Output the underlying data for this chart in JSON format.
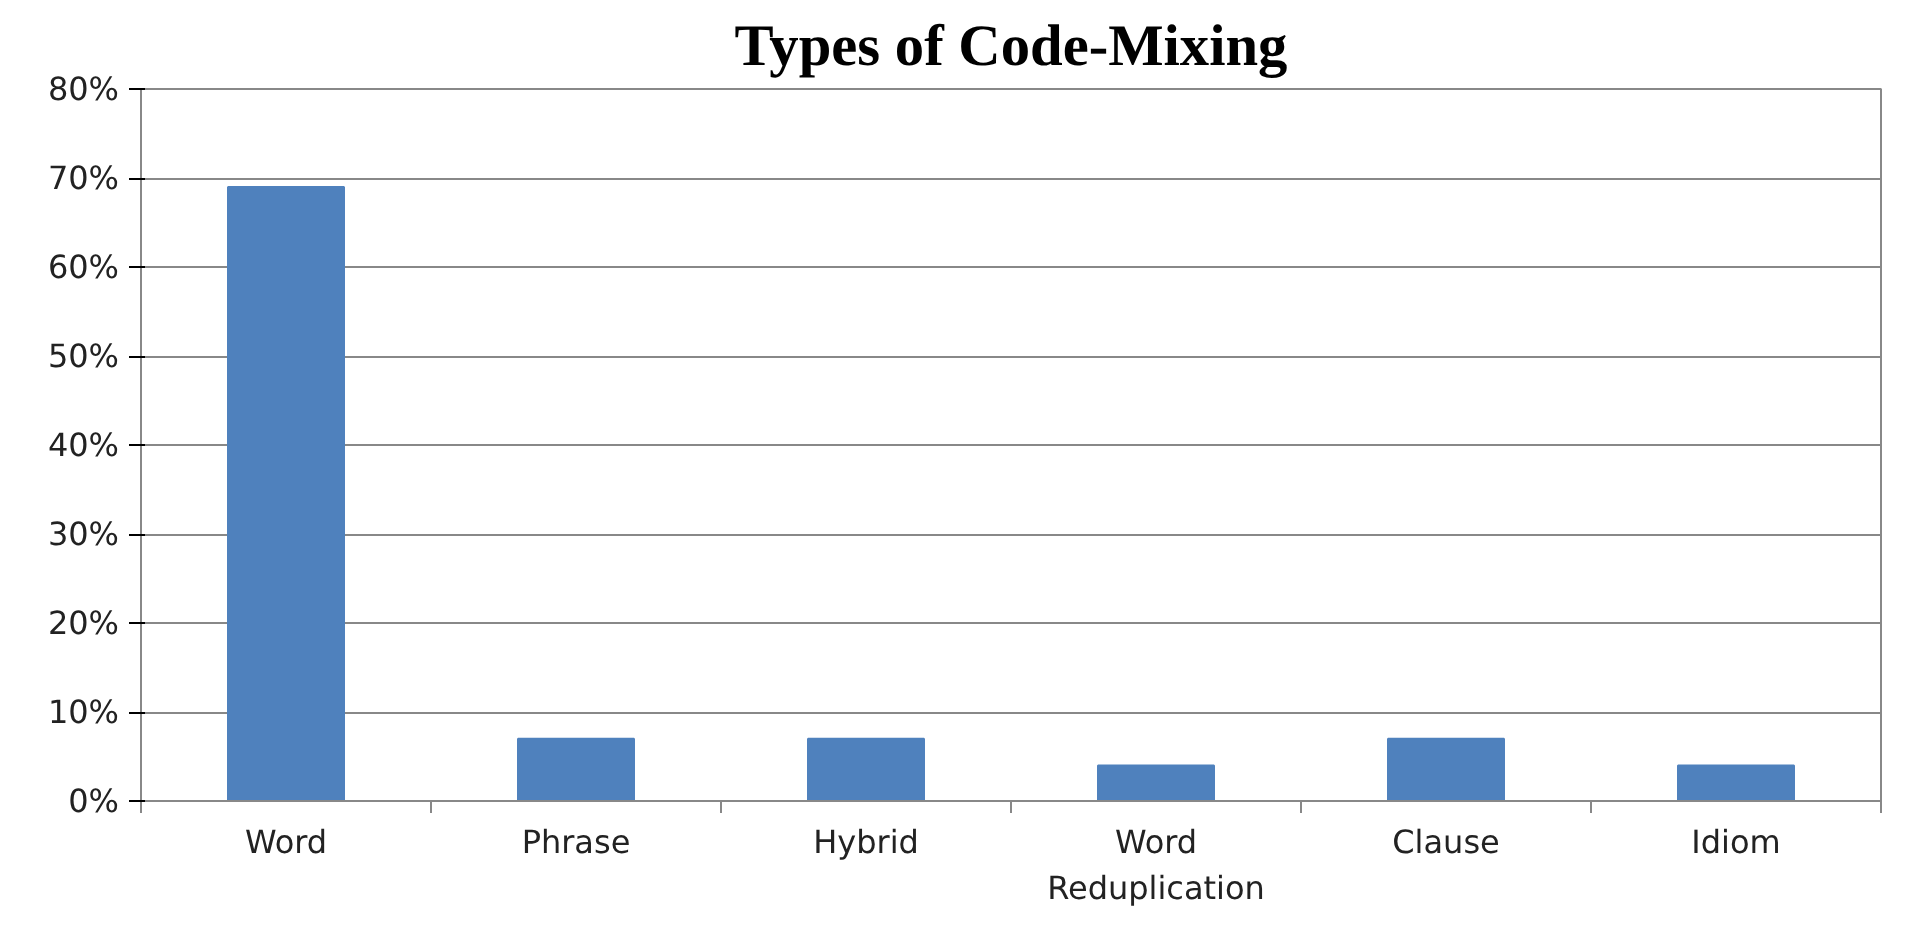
{
  "chart_data": {
    "type": "bar",
    "title": "Types of Code-Mixing",
    "categories": [
      "Word",
      "Phrase",
      "Hybrid",
      "Word Reduplication",
      "Clause",
      "Idiom"
    ],
    "values": [
      69,
      7,
      7,
      4,
      7,
      4
    ],
    "color": "#4f81bd",
    "ylim": [
      0,
      80
    ],
    "yticks": [
      {
        "value": 0,
        "label": "0%"
      },
      {
        "value": 10,
        "label": "10%"
      },
      {
        "value": 20,
        "label": "20%"
      },
      {
        "value": 30,
        "label": "30%"
      },
      {
        "value": 40,
        "label": "40%"
      },
      {
        "value": 50,
        "label": "50%"
      },
      {
        "value": 60,
        "label": "60%"
      },
      {
        "value": 70,
        "label": "70%"
      },
      {
        "value": 80,
        "label": "80%"
      }
    ],
    "grid": "y"
  }
}
